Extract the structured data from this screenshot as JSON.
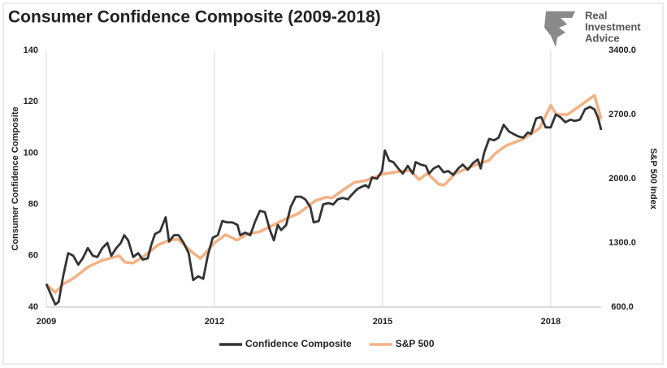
{
  "logo": [
    "Real",
    "Investment",
    "Advice"
  ],
  "chart_data": {
    "type": "line",
    "title": "Consumer Confidence Composite (2009-2018)",
    "y_label": "Consumer Confidence Composite",
    "y2_label": "S&P 500 Index",
    "xlim": [
      2009,
      2018.9
    ],
    "xticks": [
      2009,
      2012,
      2015,
      2018
    ],
    "ylim": [
      40,
      140
    ],
    "yticks": [
      40,
      60,
      80,
      100,
      120,
      140
    ],
    "y2lim": [
      600,
      3400
    ],
    "y2ticks": [
      {
        "value": 600,
        "label": "600.0"
      },
      {
        "value": 1300,
        "label": "1300.0"
      },
      {
        "value": 2000,
        "label": "2000.0"
      },
      {
        "value": 2700,
        "label": "2700.0"
      },
      {
        "value": 3400,
        "label": "3400.0"
      }
    ],
    "grid": true,
    "legend": "bottom",
    "series": [
      {
        "name": "Confidence Composite",
        "color": "#333333",
        "x": [
          2009.0,
          2009.16,
          2009.22,
          2009.3,
          2009.39,
          2009.48,
          2009.57,
          2009.65,
          2009.74,
          2009.83,
          2009.91,
          2010.0,
          2010.09,
          2010.16,
          2010.25,
          2010.33,
          2010.39,
          2010.46,
          2010.55,
          2010.64,
          2010.72,
          2010.81,
          2010.87,
          2010.94,
          2011.03,
          2011.13,
          2011.19,
          2011.28,
          2011.36,
          2011.45,
          2011.54,
          2011.62,
          2011.71,
          2011.8,
          2011.88,
          2011.97,
          2012.06,
          2012.14,
          2012.23,
          2012.32,
          2012.41,
          2012.46,
          2012.55,
          2012.64,
          2012.72,
          2012.81,
          2012.9,
          2012.99,
          2013.06,
          2013.13,
          2013.19,
          2013.28,
          2013.36,
          2013.45,
          2013.54,
          2013.62,
          2013.71,
          2013.77,
          2013.86,
          2013.94,
          2014.03,
          2014.12,
          2014.2,
          2014.29,
          2014.38,
          2014.46,
          2014.55,
          2014.64,
          2014.7,
          2014.75,
          2014.81,
          2014.9,
          2014.99,
          2015.04,
          2015.12,
          2015.19,
          2015.28,
          2015.36,
          2015.45,
          2015.54,
          2015.59,
          2015.68,
          2015.77,
          2015.83,
          2015.91,
          2016.0,
          2016.09,
          2016.17,
          2016.26,
          2016.35,
          2016.43,
          2016.52,
          2016.61,
          2016.7,
          2016.75,
          2016.81,
          2016.9,
          2016.99,
          2017.07,
          2017.16,
          2017.25,
          2017.33,
          2017.42,
          2017.51,
          2017.59,
          2017.65,
          2017.74,
          2017.83,
          2017.91,
          2018.0,
          2018.09,
          2018.17,
          2018.26,
          2018.35,
          2018.43,
          2018.52,
          2018.61,
          2018.7,
          2018.78,
          2018.84,
          2018.9
        ],
        "values": [
          49,
          41,
          42,
          52,
          61,
          60,
          56.5,
          59,
          63,
          60,
          59.5,
          63,
          65,
          60,
          63,
          65,
          68,
          66,
          59.5,
          61,
          58.5,
          59,
          64,
          68.5,
          69.5,
          75,
          65.5,
          68,
          68,
          65,
          61,
          50.5,
          52,
          51,
          60,
          67,
          68,
          73.5,
          73,
          73,
          72,
          68,
          69,
          68,
          73,
          77.5,
          77,
          70,
          66,
          72,
          70,
          72,
          79,
          83,
          83,
          82,
          79,
          73,
          73.5,
          80,
          80.5,
          80,
          82,
          82.5,
          82,
          84,
          86,
          87,
          87.5,
          86.5,
          90.5,
          90,
          93,
          101,
          97,
          96.5,
          94,
          92,
          95,
          92,
          96.5,
          95.5,
          95,
          92,
          94,
          95,
          92.5,
          93,
          91.5,
          94,
          95.5,
          93.5,
          96,
          97.5,
          94,
          100,
          105.5,
          105,
          106,
          111,
          108.5,
          107.5,
          106.5,
          106,
          108,
          107.5,
          113.5,
          114,
          110,
          110,
          115,
          114,
          112,
          113,
          112.5,
          113,
          117,
          118,
          117,
          114,
          109
        ]
      },
      {
        "name": "S&P 500",
        "color": "#f4b183",
        "axis": "y2",
        "x": [
          2009.0,
          2009.16,
          2009.3,
          2009.5,
          2009.75,
          2010.0,
          2010.3,
          2010.4,
          2010.55,
          2010.75,
          2011.0,
          2011.2,
          2011.35,
          2011.6,
          2011.75,
          2012.0,
          2012.2,
          2012.4,
          2012.6,
          2012.8,
          2013.0,
          2013.3,
          2013.5,
          2013.8,
          2014.0,
          2014.1,
          2014.3,
          2014.5,
          2014.7,
          2015.0,
          2015.3,
          2015.5,
          2015.65,
          2015.8,
          2016.0,
          2016.1,
          2016.3,
          2016.5,
          2016.7,
          2016.9,
          2017.0,
          2017.2,
          2017.5,
          2017.8,
          2018.0,
          2018.1,
          2018.3,
          2018.6,
          2018.78,
          2018.9
        ],
        "values": [
          850,
          760,
          850,
          920,
          1040,
          1110,
          1160,
          1090,
          1080,
          1160,
          1280,
          1330,
          1340,
          1200,
          1130,
          1300,
          1390,
          1330,
          1400,
          1420,
          1480,
          1570,
          1620,
          1760,
          1800,
          1790,
          1880,
          1960,
          1980,
          2050,
          2080,
          2090,
          1990,
          2060,
          1940,
          1930,
          2060,
          2110,
          2160,
          2200,
          2270,
          2360,
          2430,
          2550,
          2800,
          2700,
          2700,
          2830,
          2910,
          2650
        ]
      }
    ]
  }
}
